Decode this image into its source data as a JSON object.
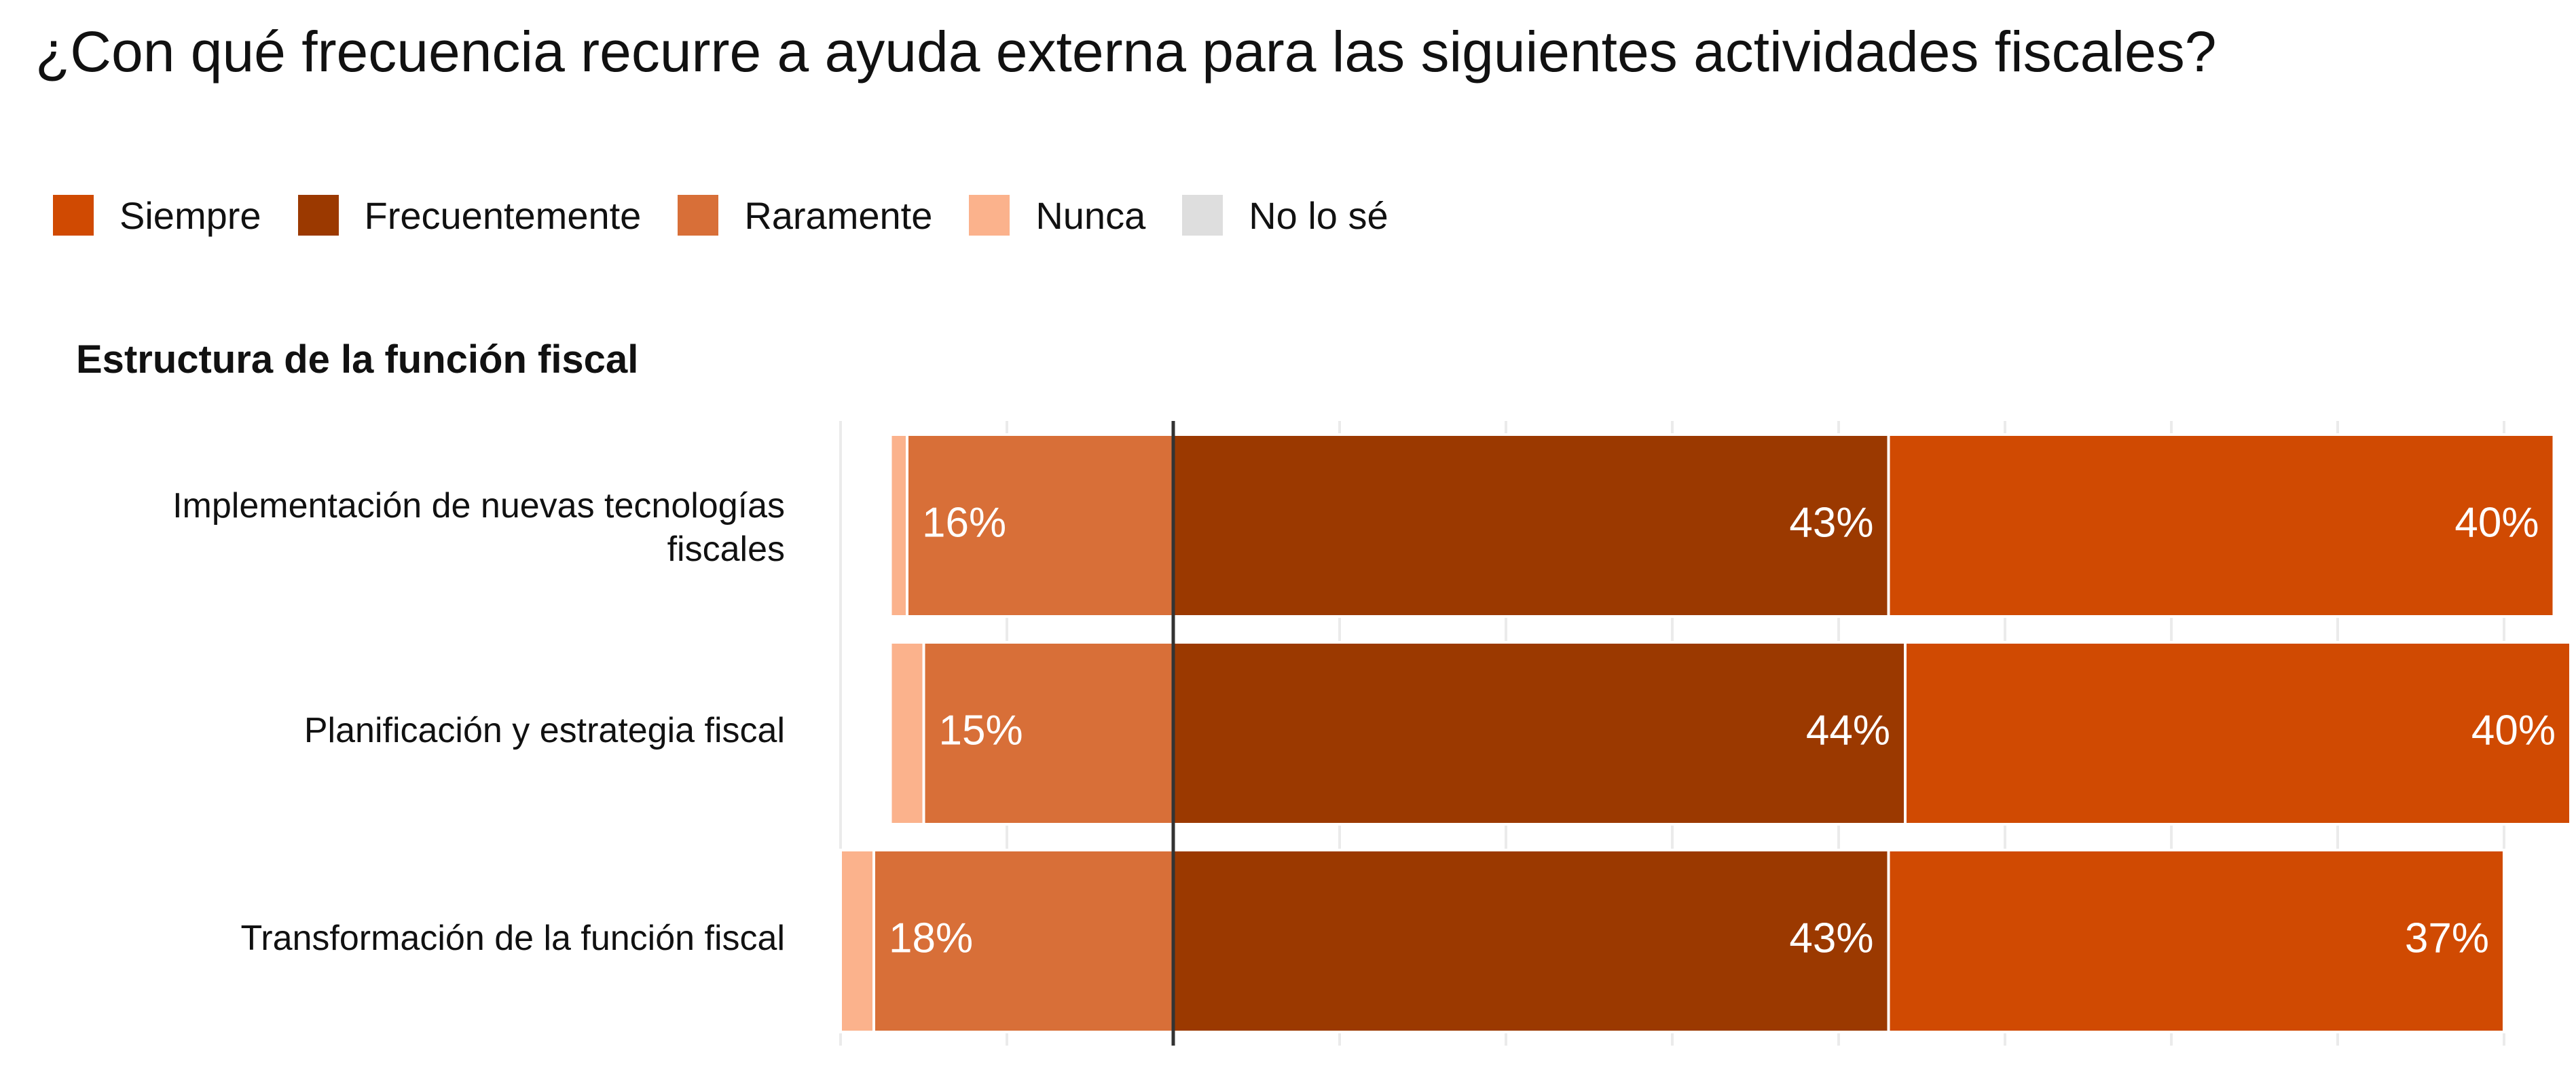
{
  "title": "¿Con qué frecuencia recurre a ayuda externa para las siguientes actividades fiscales?",
  "legend": [
    {
      "label": "Siempre",
      "color": "#d04a02"
    },
    {
      "label": "Frecuentemente",
      "color": "#9b3900"
    },
    {
      "label": "Raramente",
      "color": "#d86f38"
    },
    {
      "label": "Nunca",
      "color": "#fbb28c"
    },
    {
      "label": "No lo sé",
      "color": "#dedede"
    }
  ],
  "subtitle": "Estructura de la función fiscal",
  "chart_data": {
    "type": "bar",
    "orientation": "horizontal",
    "stacked": "diverging",
    "categories": [
      "Implementación de nuevas tecnologías fiscales",
      "Planificación y estrategia fiscal",
      "Transformación de la función fiscal"
    ],
    "series": [
      {
        "name": "Siempre",
        "values": [
          40,
          40,
          37
        ],
        "color": "#d04a02",
        "labels": [
          "40%",
          "40%",
          "37%"
        ]
      },
      {
        "name": "Frecuentemente",
        "values": [
          43,
          44,
          43
        ],
        "color": "#9b3900",
        "labels": [
          "43%",
          "44%",
          "43%"
        ]
      },
      {
        "name": "Raramente",
        "values": [
          16,
          15,
          18
        ],
        "color": "#d86f38",
        "labels": [
          "16%",
          "15%",
          "18%"
        ]
      },
      {
        "name": "Nunca",
        "values": [
          1,
          2,
          2
        ],
        "color": "#fbb28c"
      }
    ],
    "grid": true,
    "legend_position": "top-left"
  }
}
